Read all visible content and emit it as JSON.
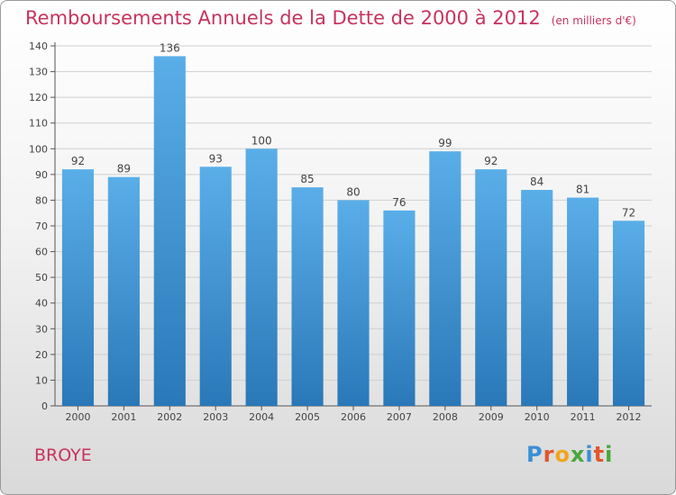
{
  "chart_data": {
    "type": "bar",
    "title": "Remboursements Annuels de la Dette de 2000 à 2012",
    "unit_note": "(en milliers d'€)",
    "categories": [
      "2000",
      "2001",
      "2002",
      "2003",
      "2004",
      "2005",
      "2006",
      "2007",
      "2008",
      "2009",
      "2010",
      "2011",
      "2012"
    ],
    "values": [
      92,
      89,
      136,
      93,
      100,
      85,
      80,
      76,
      99,
      92,
      84,
      81,
      72
    ],
    "ylim": [
      0,
      140
    ],
    "yticks": [
      0,
      10,
      20,
      30,
      40,
      50,
      60,
      70,
      80,
      90,
      100,
      110,
      120,
      130,
      140
    ],
    "grid": true,
    "bar_color_top": "#5aaee8",
    "bar_color_bottom": "#2a78b8"
  },
  "footer": {
    "commune": "BROYE",
    "logo_letters": [
      "P",
      "r",
      "o",
      "x",
      "i",
      "t",
      "i"
    ],
    "logo_colors": [
      "#3a8fd6",
      "#e0572a",
      "#f2a51c",
      "#4aa63c",
      "#3a8fd6",
      "#e0572a",
      "#4aa63c"
    ]
  }
}
